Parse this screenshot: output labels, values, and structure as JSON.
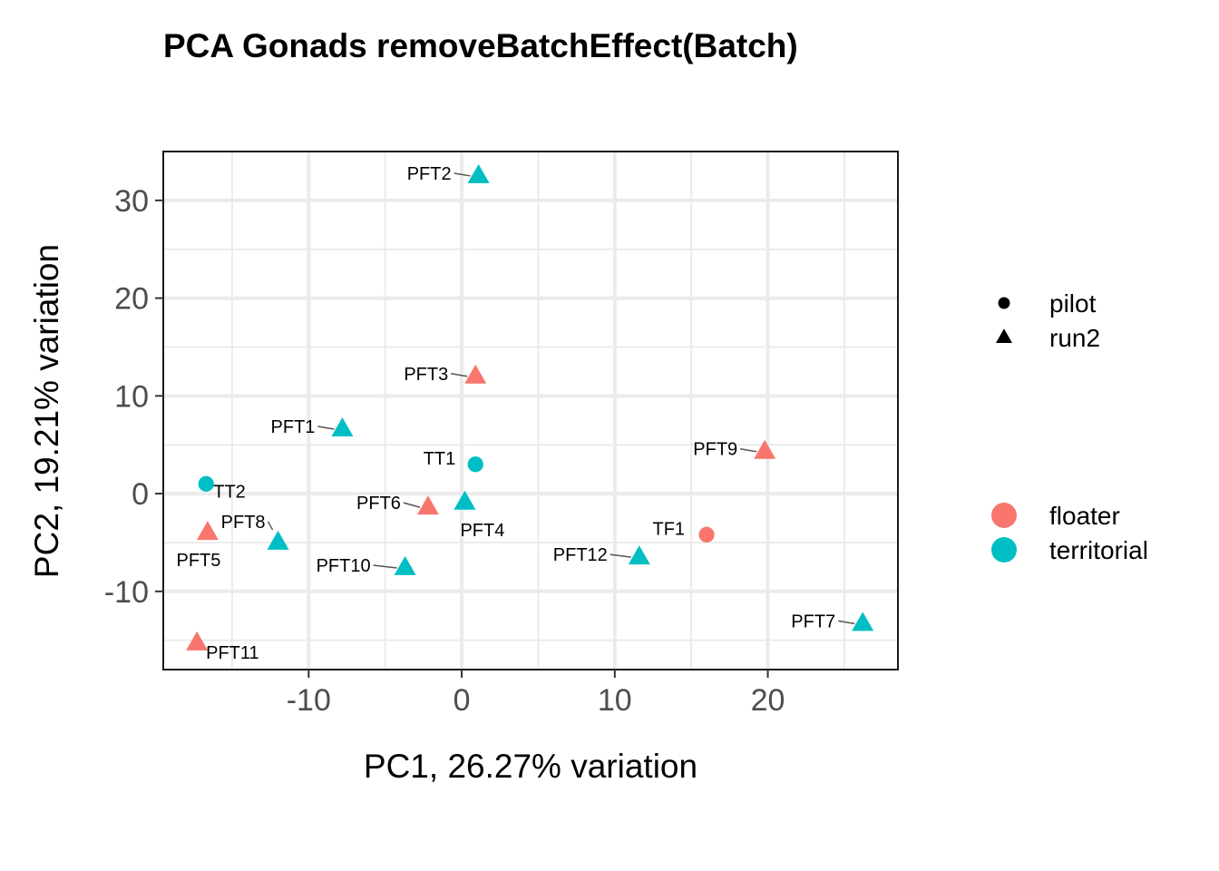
{
  "chart_data": {
    "type": "scatter",
    "title": "PCA Gonads removeBatchEffect(Batch)",
    "xlabel": "PC1, 26.27% variation",
    "ylabel": "PC2, 19.21% variation",
    "xlim": [
      -19.5,
      28.5
    ],
    "ylim": [
      -18,
      35
    ],
    "xticks": [
      -10,
      0,
      10,
      20
    ],
    "xtick_labels": [
      "-10",
      "0",
      "10",
      "20"
    ],
    "yticks": [
      -10,
      0,
      10,
      20,
      30
    ],
    "ytick_labels": [
      "-10",
      "0",
      "10",
      "20",
      "30"
    ],
    "grid": true,
    "shape_legend": {
      "items": [
        {
          "label": "pilot",
          "shape": "circle"
        },
        {
          "label": "run2",
          "shape": "triangle"
        }
      ]
    },
    "color_legend": {
      "items": [
        {
          "label": "floater",
          "color": "#F8766D"
        },
        {
          "label": "territorial",
          "color": "#00BFC4"
        }
      ]
    },
    "legend_position": "right",
    "points": [
      {
        "label": "PFT2",
        "x": 1.1,
        "y": 32.5,
        "group": "territorial",
        "batch": "run2"
      },
      {
        "label": "PFT3",
        "x": 0.9,
        "y": 12.0,
        "group": "floater",
        "batch": "run2"
      },
      {
        "label": "PFT1",
        "x": -7.8,
        "y": 6.6,
        "group": "territorial",
        "batch": "run2"
      },
      {
        "label": "TT1",
        "x": 0.9,
        "y": 3.0,
        "group": "territorial",
        "batch": "pilot"
      },
      {
        "label": "PFT9",
        "x": 19.8,
        "y": 4.3,
        "group": "floater",
        "batch": "run2"
      },
      {
        "label": "TT2",
        "x": -16.7,
        "y": 1.0,
        "group": "territorial",
        "batch": "pilot"
      },
      {
        "label": "PFT6",
        "x": -2.2,
        "y": -1.4,
        "group": "floater",
        "batch": "run2"
      },
      {
        "label": "PFT4",
        "x": 0.2,
        "y": -0.9,
        "group": "territorial",
        "batch": "run2"
      },
      {
        "label": "TF1",
        "x": 16.0,
        "y": -4.2,
        "group": "floater",
        "batch": "pilot"
      },
      {
        "label": "PFT5",
        "x": -16.6,
        "y": -4.0,
        "group": "floater",
        "batch": "run2"
      },
      {
        "label": "PFT8",
        "x": -12.0,
        "y": -5.0,
        "group": "territorial",
        "batch": "run2"
      },
      {
        "label": "PFT10",
        "x": -3.7,
        "y": -7.6,
        "group": "territorial",
        "batch": "run2"
      },
      {
        "label": "PFT12",
        "x": 11.6,
        "y": -6.5,
        "group": "territorial",
        "batch": "run2"
      },
      {
        "label": "PFT7",
        "x": 26.2,
        "y": -13.3,
        "group": "territorial",
        "batch": "run2"
      },
      {
        "label": "PFT11",
        "x": -17.3,
        "y": -15.3,
        "group": "floater",
        "batch": "run2"
      }
    ]
  }
}
